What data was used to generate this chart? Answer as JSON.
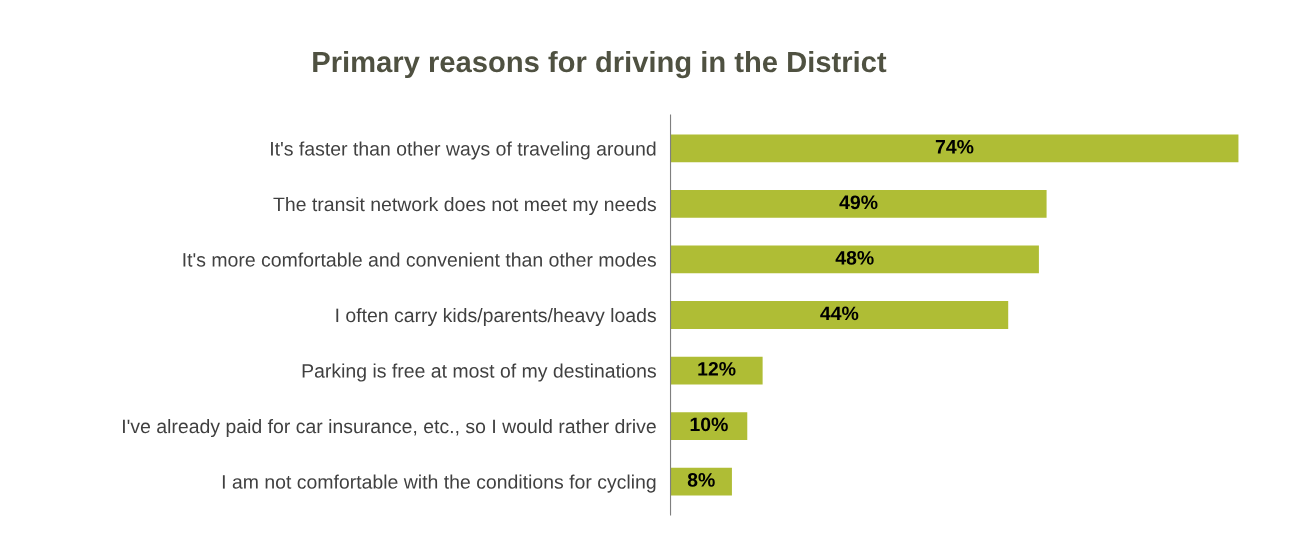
{
  "chart_data": {
    "type": "bar",
    "orientation": "horizontal",
    "title": "Primary reasons for driving in the District",
    "categories": [
      "It's faster than other ways of traveling around",
      "The transit network does not meet my needs",
      "It's more comfortable and convenient than other modes",
      "I often carry kids/parents/heavy loads",
      "Parking is free at most of my destinations",
      "I've already paid for car insurance, etc., so I would rather drive",
      "I am not comfortable with the conditions for cycling"
    ],
    "values": [
      74,
      49,
      48,
      44,
      12,
      10,
      8
    ],
    "value_labels": [
      "74%",
      "49%",
      "48%",
      "44%",
      "12%",
      "10%",
      "8%"
    ],
    "color": "#afbd35",
    "tick_labels": "y",
    "grid": false,
    "legend": false
  }
}
